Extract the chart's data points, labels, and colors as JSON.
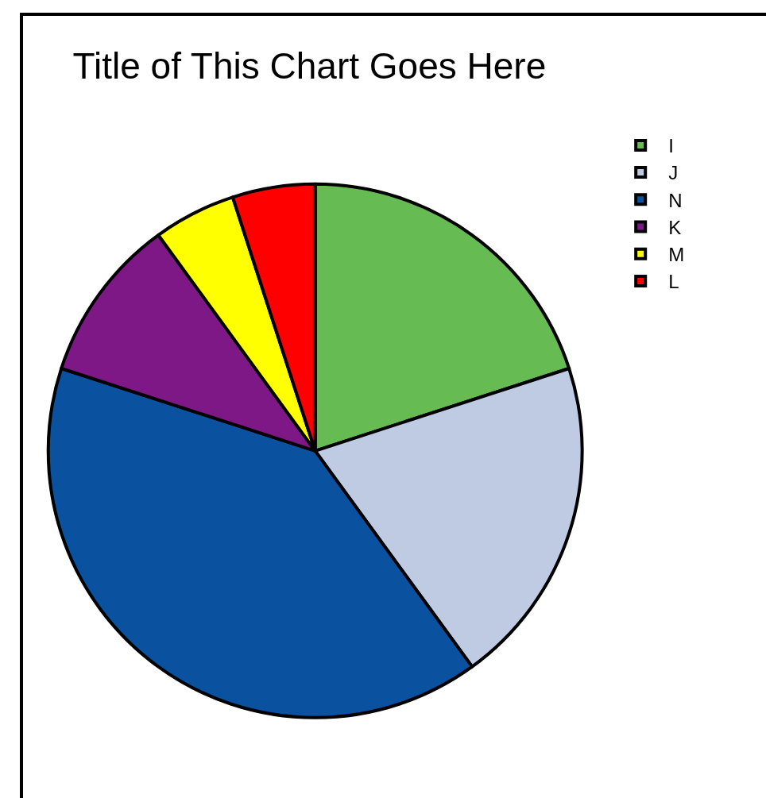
{
  "chart_data": {
    "type": "pie",
    "title": "Title of This Chart Goes Here",
    "categories": [
      "I",
      "J",
      "N",
      "K",
      "M",
      "L"
    ],
    "values": [
      20,
      20,
      40,
      10,
      5,
      5
    ],
    "colors": [
      "#66bb52",
      "#bfcbe3",
      "#0a519f",
      "#7f1887",
      "#ffff00",
      "#ff0000"
    ],
    "legend": "right"
  }
}
